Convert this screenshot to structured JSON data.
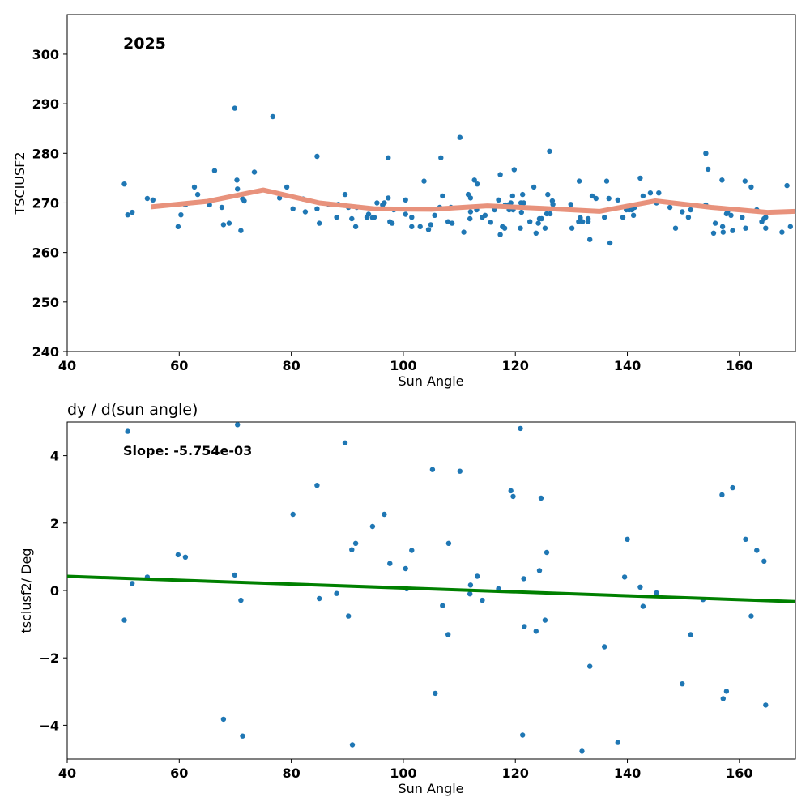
{
  "colors": {
    "point": "#1f77b4",
    "smooth": "#e8927c",
    "fit": "#008000"
  },
  "chart_data": [
    {
      "type": "scatter",
      "annotation": "2025",
      "xlabel": "Sun Angle",
      "ylabel": "TSCIUSF2",
      "xlim": [
        40,
        170
      ],
      "ylim": [
        240,
        308
      ],
      "xticks": [
        40,
        60,
        80,
        100,
        120,
        140,
        160
      ],
      "yticks": [
        240,
        250,
        260,
        270,
        280,
        290,
        300
      ],
      "points": [
        [
          50.2,
          273.8
        ],
        [
          50.8,
          267.6
        ],
        [
          51.6,
          268.1
        ],
        [
          54.3,
          270.9
        ],
        [
          55.3,
          270.6
        ],
        [
          59.8,
          265.2
        ],
        [
          60.3,
          267.6
        ],
        [
          61.1,
          269.6
        ],
        [
          62.7,
          273.2
        ],
        [
          63.3,
          271.7
        ],
        [
          65.4,
          269.6
        ],
        [
          66.3,
          276.5
        ],
        [
          67.6,
          269.1
        ],
        [
          67.9,
          265.6
        ],
        [
          68.9,
          265.9
        ],
        [
          69.9,
          289.1
        ],
        [
          70.3,
          274.6
        ],
        [
          70.4,
          272.8
        ],
        [
          71.0,
          264.4
        ],
        [
          71.3,
          270.8
        ],
        [
          71.6,
          270.4
        ],
        [
          73.4,
          276.2
        ],
        [
          76.7,
          287.4
        ],
        [
          77.9,
          271.0
        ],
        [
          79.2,
          273.2
        ],
        [
          80.3,
          268.8
        ],
        [
          82.1,
          270.8
        ],
        [
          82.5,
          268.2
        ],
        [
          84.6,
          268.8
        ],
        [
          84.6,
          279.4
        ],
        [
          85.0,
          265.9
        ],
        [
          86.7,
          269.7
        ],
        [
          88.1,
          267.1
        ],
        [
          88.4,
          269.7
        ],
        [
          89.6,
          271.7
        ],
        [
          90.2,
          269.1
        ],
        [
          90.8,
          266.8
        ],
        [
          91.5,
          265.2
        ],
        [
          91.7,
          269.1
        ],
        [
          93.5,
          267.1
        ],
        [
          93.8,
          267.7
        ],
        [
          94.5,
          267.0
        ],
        [
          94.8,
          267.1
        ],
        [
          95.3,
          270.0
        ],
        [
          96.3,
          269.6
        ],
        [
          96.6,
          270.0
        ],
        [
          97.3,
          279.1
        ],
        [
          97.3,
          271.0
        ],
        [
          97.6,
          266.2
        ],
        [
          98.0,
          265.9
        ],
        [
          98.3,
          268.6
        ],
        [
          100.4,
          267.7
        ],
        [
          100.4,
          270.6
        ],
        [
          101.5,
          267.1
        ],
        [
          101.5,
          265.2
        ],
        [
          103.0,
          265.2
        ],
        [
          103.7,
          274.4
        ],
        [
          104.5,
          264.6
        ],
        [
          104.9,
          265.6
        ],
        [
          105.6,
          267.5
        ],
        [
          106.5,
          269.1
        ],
        [
          106.7,
          279.1
        ],
        [
          107.0,
          271.4
        ],
        [
          108.0,
          266.2
        ],
        [
          108.5,
          269.1
        ],
        [
          108.7,
          265.9
        ],
        [
          110.1,
          283.2
        ],
        [
          110.8,
          264.1
        ],
        [
          111.6,
          271.7
        ],
        [
          111.9,
          266.8
        ],
        [
          112.0,
          268.2
        ],
        [
          112.0,
          271.0
        ],
        [
          112.7,
          274.6
        ],
        [
          113.1,
          268.6
        ],
        [
          113.2,
          273.8
        ],
        [
          114.1,
          267.1
        ],
        [
          114.6,
          267.5
        ],
        [
          115.6,
          266.1
        ],
        [
          116.3,
          268.6
        ],
        [
          117.0,
          270.6
        ],
        [
          117.3,
          275.7
        ],
        [
          117.3,
          263.6
        ],
        [
          117.7,
          265.2
        ],
        [
          118.1,
          264.9
        ],
        [
          118.2,
          269.6
        ],
        [
          118.7,
          269.6
        ],
        [
          118.9,
          268.6
        ],
        [
          119.2,
          270.0
        ],
        [
          119.5,
          271.4
        ],
        [
          119.6,
          268.6
        ],
        [
          119.8,
          276.7
        ],
        [
          120.9,
          264.9
        ],
        [
          121.0,
          270.0
        ],
        [
          121.1,
          268.1
        ],
        [
          121.3,
          271.7
        ],
        [
          121.5,
          270.0
        ],
        [
          122.6,
          266.2
        ],
        [
          123.3,
          273.2
        ],
        [
          123.7,
          263.9
        ],
        [
          124.1,
          265.9
        ],
        [
          124.3,
          266.8
        ],
        [
          124.7,
          266.8
        ],
        [
          125.3,
          264.9
        ],
        [
          125.6,
          267.8
        ],
        [
          125.8,
          271.7
        ],
        [
          126.1,
          280.4
        ],
        [
          126.2,
          267.8
        ],
        [
          126.6,
          270.4
        ],
        [
          126.7,
          269.7
        ],
        [
          129.9,
          269.7
        ],
        [
          130.1,
          264.9
        ],
        [
          131.3,
          266.2
        ],
        [
          131.4,
          274.4
        ],
        [
          131.6,
          267.0
        ],
        [
          132.0,
          266.2
        ],
        [
          133.0,
          266.2
        ],
        [
          133.0,
          266.8
        ],
        [
          133.3,
          262.6
        ],
        [
          133.7,
          271.4
        ],
        [
          134.4,
          270.9
        ],
        [
          135.9,
          267.1
        ],
        [
          136.3,
          274.4
        ],
        [
          136.7,
          270.9
        ],
        [
          136.9,
          261.9
        ],
        [
          138.3,
          270.6
        ],
        [
          139.2,
          267.1
        ],
        [
          139.8,
          268.6
        ],
        [
          140.3,
          268.6
        ],
        [
          140.8,
          268.6
        ],
        [
          141.1,
          267.5
        ],
        [
          141.3,
          269.1
        ],
        [
          142.3,
          275.0
        ],
        [
          142.8,
          271.4
        ],
        [
          144.1,
          272.0
        ],
        [
          145.2,
          270.0
        ],
        [
          145.6,
          272.0
        ],
        [
          147.6,
          269.1
        ],
        [
          148.6,
          264.9
        ],
        [
          149.8,
          268.2
        ],
        [
          150.9,
          267.1
        ],
        [
          151.3,
          268.6
        ],
        [
          154.0,
          269.6
        ],
        [
          154.0,
          280.0
        ],
        [
          154.4,
          276.8
        ],
        [
          155.4,
          263.9
        ],
        [
          155.7,
          265.9
        ],
        [
          156.9,
          274.6
        ],
        [
          157.0,
          265.2
        ],
        [
          157.1,
          264.1
        ],
        [
          157.7,
          267.8
        ],
        [
          157.9,
          268.2
        ],
        [
          158.5,
          267.5
        ],
        [
          158.8,
          264.4
        ],
        [
          160.5,
          267.1
        ],
        [
          161.0,
          274.4
        ],
        [
          161.1,
          264.9
        ],
        [
          162.1,
          273.2
        ],
        [
          163.1,
          268.6
        ],
        [
          164.0,
          266.2
        ],
        [
          164.4,
          266.8
        ],
        [
          164.7,
          267.1
        ],
        [
          164.7,
          264.9
        ],
        [
          167.6,
          264.1
        ],
        [
          168.5,
          273.5
        ],
        [
          169.1,
          265.2
        ]
      ],
      "smooth_line": {
        "x": [
          55,
          65,
          75,
          85,
          95,
          105,
          115,
          125,
          135,
          145,
          155,
          165,
          170
        ],
        "y": [
          269.2,
          270.3,
          272.6,
          270.0,
          268.8,
          268.7,
          269.4,
          268.9,
          268.3,
          270.4,
          269.1,
          268.1,
          268.3
        ]
      }
    },
    {
      "type": "scatter",
      "title": "dy / d(sun angle)",
      "annotation": "Slope: -5.754e-03",
      "xlabel": "Sun Angle",
      "ylabel": "tsciusf2/ Deg",
      "xlim": [
        40,
        170
      ],
      "ylim": [
        -5,
        5
      ],
      "xticks": [
        40,
        60,
        80,
        100,
        120,
        140,
        160
      ],
      "yticks": [
        -4,
        -2,
        0,
        2,
        4
      ],
      "ytick_labels": [
        "−4",
        "−2",
        "0",
        "2",
        "4"
      ],
      "points": [
        [
          50.2,
          -0.88
        ],
        [
          50.8,
          4.72
        ],
        [
          51.6,
          0.21
        ],
        [
          54.3,
          0.4
        ],
        [
          59.8,
          1.06
        ],
        [
          61.1,
          0.99
        ],
        [
          67.9,
          -3.82
        ],
        [
          69.9,
          0.46
        ],
        [
          70.4,
          4.92
        ],
        [
          71.0,
          -0.29
        ],
        [
          71.3,
          -4.32
        ],
        [
          80.3,
          2.26
        ],
        [
          84.6,
          3.12
        ],
        [
          85.0,
          -0.24
        ],
        [
          88.1,
          -0.09
        ],
        [
          89.6,
          4.38
        ],
        [
          90.2,
          -0.76
        ],
        [
          90.8,
          1.21
        ],
        [
          90.9,
          -4.58
        ],
        [
          91.5,
          1.4
        ],
        [
          94.5,
          1.9
        ],
        [
          96.6,
          2.26
        ],
        [
          97.6,
          0.8
        ],
        [
          100.4,
          0.65
        ],
        [
          100.6,
          0.05
        ],
        [
          101.5,
          1.19
        ],
        [
          105.2,
          3.59
        ],
        [
          105.7,
          -3.05
        ],
        [
          107.0,
          -0.45
        ],
        [
          108.0,
          -1.31
        ],
        [
          108.1,
          1.4
        ],
        [
          110.1,
          3.54
        ],
        [
          111.9,
          -0.1
        ],
        [
          112.0,
          0.16
        ],
        [
          113.2,
          0.42
        ],
        [
          114.1,
          -0.29
        ],
        [
          117.0,
          0.05
        ],
        [
          119.2,
          2.96
        ],
        [
          119.6,
          2.79
        ],
        [
          120.9,
          4.81
        ],
        [
          121.3,
          -4.29
        ],
        [
          121.5,
          0.35
        ],
        [
          121.6,
          -1.07
        ],
        [
          123.7,
          -1.21
        ],
        [
          124.3,
          0.59
        ],
        [
          124.6,
          2.74
        ],
        [
          125.3,
          -0.88
        ],
        [
          125.6,
          1.13
        ],
        [
          131.9,
          -4.77
        ],
        [
          133.3,
          -2.25
        ],
        [
          135.9,
          -1.67
        ],
        [
          138.3,
          -4.51
        ],
        [
          139.5,
          0.4
        ],
        [
          140.0,
          1.52
        ],
        [
          142.3,
          0.1
        ],
        [
          142.8,
          -0.47
        ],
        [
          145.2,
          -0.07
        ],
        [
          149.8,
          -2.77
        ],
        [
          151.3,
          -1.31
        ],
        [
          153.5,
          -0.27
        ],
        [
          156.9,
          2.84
        ],
        [
          157.1,
          -3.21
        ],
        [
          157.7,
          -2.99
        ],
        [
          158.8,
          3.05
        ],
        [
          161.1,
          1.52
        ],
        [
          162.1,
          -0.76
        ],
        [
          163.1,
          1.19
        ],
        [
          164.4,
          0.87
        ],
        [
          164.7,
          -3.4
        ]
      ],
      "fit_line": {
        "x": [
          40,
          170
        ],
        "y": [
          0.42,
          -0.33
        ]
      }
    }
  ]
}
